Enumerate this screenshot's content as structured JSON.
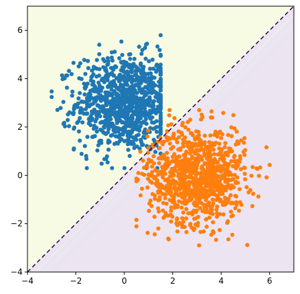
{
  "chart_data": {
    "type": "scatter",
    "title": "",
    "xlabel": "",
    "ylabel": "",
    "xlim": [
      -4,
      7
    ],
    "ylim": [
      -4,
      7
    ],
    "grid": false,
    "x_ticks": [
      -4,
      -2,
      0,
      2,
      4,
      6
    ],
    "y_ticks": [
      -4,
      -2,
      0,
      2,
      4,
      6
    ],
    "x_tick_labels": [
      "−4",
      "−2",
      "0",
      "2",
      "4",
      "6"
    ],
    "y_tick_labels": [
      "−4",
      "−2",
      "0",
      "2",
      "4",
      "6"
    ],
    "decision_boundary": {
      "line": [
        [
          -4,
          -4
        ],
        [
          7,
          7
        ]
      ],
      "style": "dashed",
      "color": "#2d004b"
    },
    "regions": [
      {
        "side": "upper-left",
        "color": "#f7fbe4"
      },
      {
        "side": "lower-right",
        "color": "#ece4f1"
      }
    ],
    "series": [
      {
        "color": "#1f77b4",
        "center": [
          0.0,
          3.0
        ],
        "spread": 1.0,
        "count": 1000,
        "x_range": [
          -3.0,
          1.5
        ],
        "y_range": [
          0.3,
          5.8
        ]
      },
      {
        "color": "#ff7f0e",
        "center": [
          3.0,
          0.0
        ],
        "spread": 1.0,
        "count": 1000,
        "x_range": [
          0.5,
          6.0
        ],
        "y_range": [
          -3.1,
          2.7
        ]
      }
    ]
  }
}
